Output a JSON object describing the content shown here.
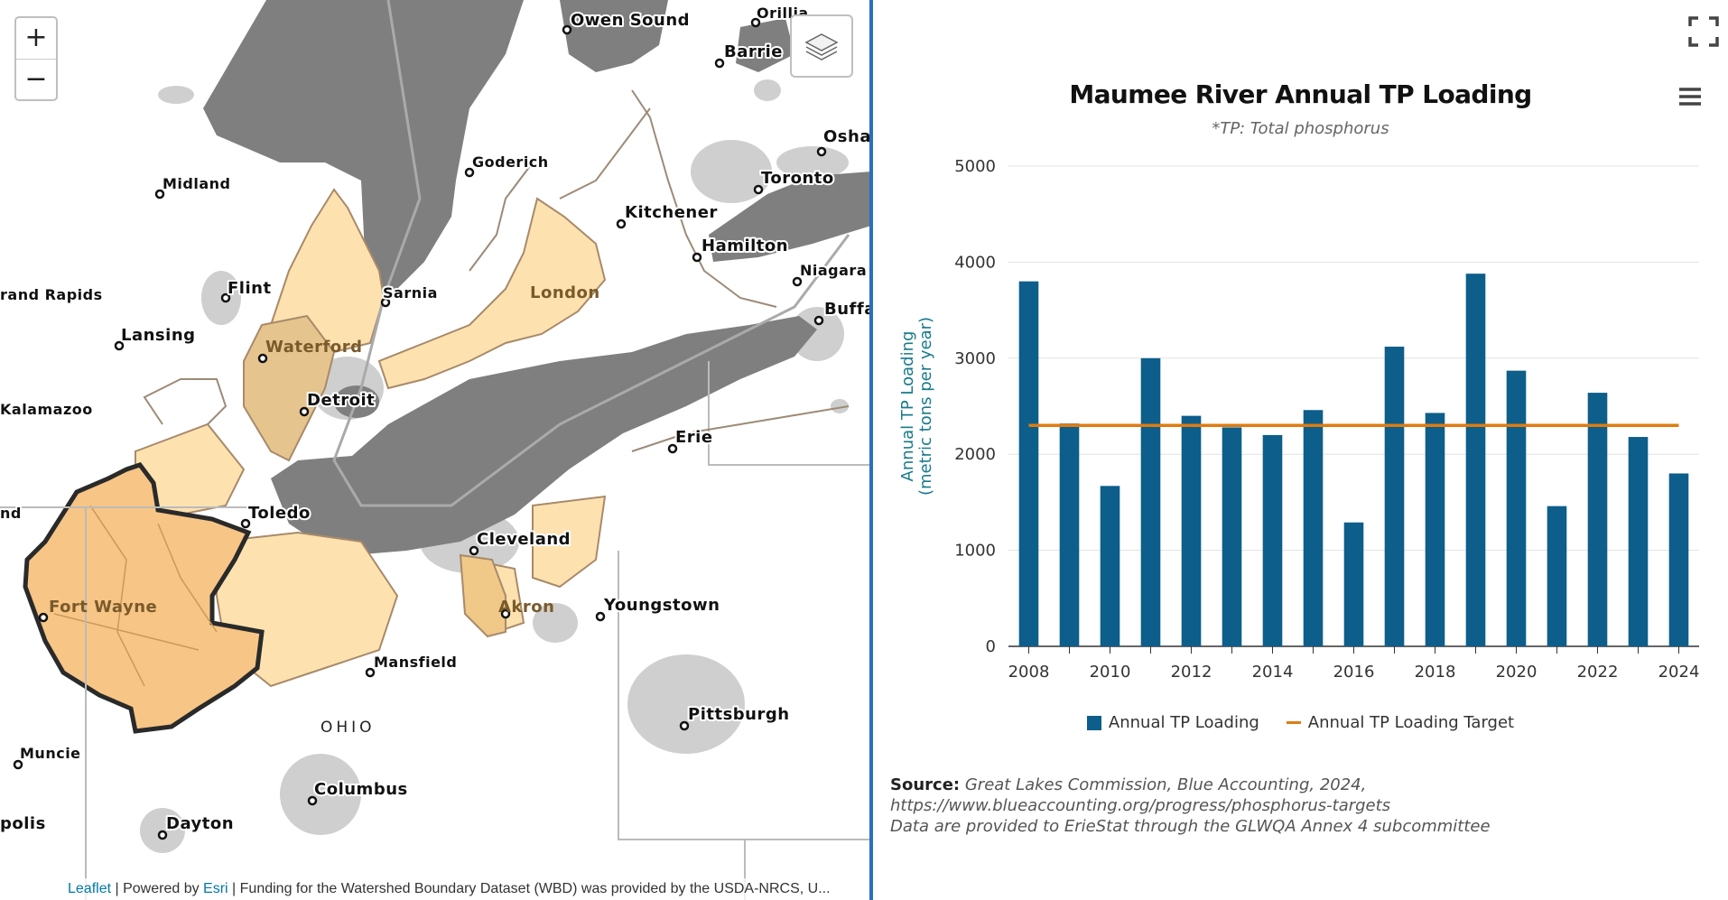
{
  "map": {
    "zoom_in_label": "+",
    "zoom_out_label": "−",
    "layers_icon": "layers-icon",
    "cities": {
      "owen_sound": "Owen Sound",
      "orillia": "Orillia",
      "barrie": "Barrie",
      "oshawa": "Osha",
      "goderich": "Goderich",
      "midland": "Midland",
      "toronto": "Toronto",
      "kitchener": "Kitchener",
      "hamilton": "Hamilton",
      "niagara": "Niagara",
      "buffalo": "Buffa",
      "flint": "Flint",
      "grand_rapids": "rand Rapids",
      "sarnia": "Sarnia",
      "london": "London",
      "lansing": "Lansing",
      "waterford": "Waterford",
      "detroit": "Detroit",
      "kalamazoo": "Kalamazoo",
      "erie": "Erie",
      "toledo": "Toledo",
      "cleveland": "Cleveland",
      "fort_wayne": "Fort Wayne",
      "akron": "Akron",
      "youngstown": "Youngstown",
      "mansfield": "Mansfield",
      "pittsburgh": "Pittsburgh",
      "muncie": "Muncie",
      "columbus": "Columbus",
      "indianapolis": "polis",
      "dayton": "Dayton",
      "left_edge": "nd"
    },
    "state_label": "OHIO",
    "attribution": {
      "leaflet": "Leaflet",
      "sep1": " | Powered by ",
      "esri": "Esri",
      "rest": " | Funding for the Watershed Boundary Dataset (WBD) was provided by the USDA-NRCS, U..."
    }
  },
  "chart": {
    "fullscreen_icon": "fullscreen-icon",
    "menu_icon": "hamburger-menu-icon"
  },
  "chart_data": {
    "type": "bar",
    "title": "Maumee River Annual TP Loading",
    "subtitle": "*TP: Total phosphorus",
    "ylabel_line1": "Annual TP Loading",
    "ylabel_line2": "(metric tons per year)",
    "xlabel": "",
    "ylim": [
      0,
      5000
    ],
    "yticks": [
      0,
      1000,
      2000,
      3000,
      4000,
      5000
    ],
    "xticks": [
      "2008",
      "2010",
      "2012",
      "2014",
      "2016",
      "2018",
      "2020",
      "2022",
      "2024"
    ],
    "categories": [
      2008,
      2009,
      2010,
      2011,
      2012,
      2013,
      2014,
      2015,
      2016,
      2017,
      2018,
      2019,
      2020,
      2021,
      2022,
      2023,
      2024
    ],
    "series": [
      {
        "name": "Annual TP Loading",
        "type": "bar",
        "color": "#0d5e8a",
        "values": [
          3800,
          2320,
          1670,
          3000,
          2400,
          2280,
          2200,
          2460,
          1290,
          3120,
          2430,
          3880,
          2870,
          1460,
          2640,
          2180,
          1800
        ]
      },
      {
        "name": "Annual TP Loading Target",
        "type": "line",
        "color": "#e07b10",
        "values": [
          2300,
          2300,
          2300,
          2300,
          2300,
          2300,
          2300,
          2300,
          2300,
          2300,
          2300,
          2300,
          2300,
          2300,
          2300,
          2300,
          2300
        ]
      }
    ],
    "legend": [
      "Annual TP Loading",
      "Annual TP Loading Target"
    ],
    "source_label": "Source:",
    "source_line1": "Great Lakes Commission, Blue Accounting, 2024,",
    "source_line2": "https://www.blueaccounting.org/progress/phosphorus-targets",
    "source_line3": " Data are provided to ErieStat through the GLWQA Annex 4 subcommittee"
  }
}
